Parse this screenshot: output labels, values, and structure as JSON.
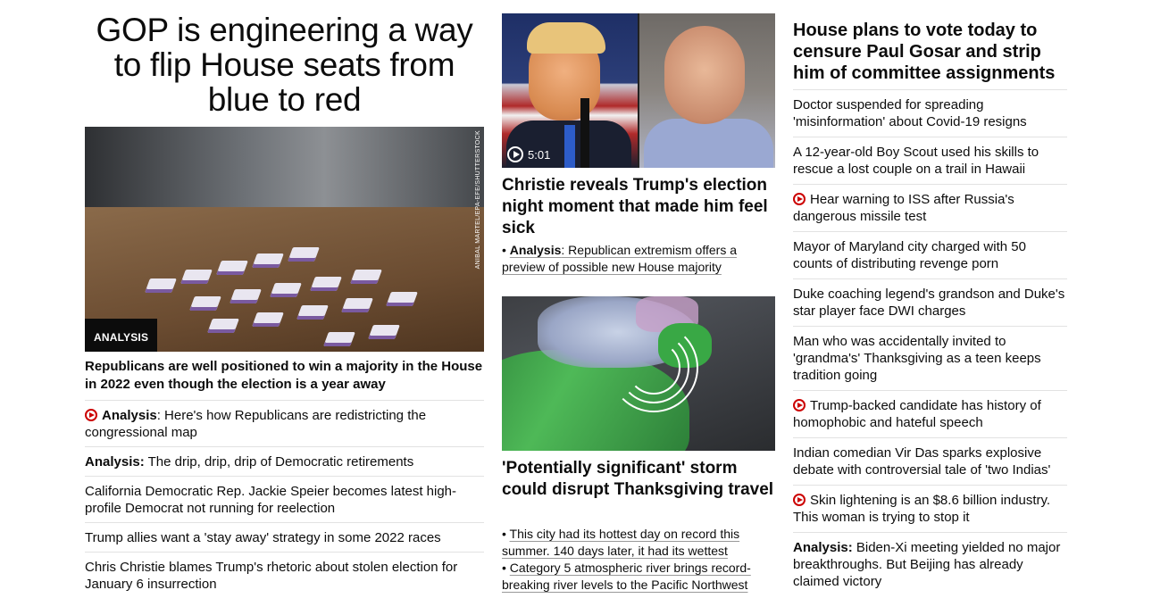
{
  "col1": {
    "headline": "GOP is engineering a way to flip House seats from blue to red",
    "image_credit": "ANIBAL MARTEL/EPA-EFE/SHUTTERSTOCK",
    "badge": "ANALYSIS",
    "caption": "Republicans are well positioned to win a majority in the House in 2022 even though the election is a year away",
    "items": [
      {
        "prefix": "Analysis",
        "text": ": Here's how Republicans are redistricting the congressional map",
        "video": true
      },
      {
        "prefix": "Analysis:",
        "text": " The drip, drip, drip of Democratic retirements",
        "video": false
      },
      {
        "prefix": "",
        "text": "California Democratic Rep. Jackie Speier becomes latest high-profile Democrat not running for reelection",
        "video": false
      },
      {
        "prefix": "",
        "text": "Trump allies want a 'stay away' strategy in some 2022 races",
        "video": false
      },
      {
        "prefix": "",
        "text": "Chris Christie blames Trump's rhetoric about stolen election for January 6 insurrection",
        "video": false
      }
    ]
  },
  "col2": {
    "video_duration": "5:01",
    "headline1": "Christie reveals Trump's election night moment that made him feel sick",
    "sub1_bullet": "•",
    "sub1_prefix": "Analysis",
    "sub1_text": ": Republican extremism offers a preview of possible new House majority",
    "headline2": "'Potentially significant' storm could disrupt Thanksgiving travel",
    "bullet2a": "This city had its hottest day on record this summer. 140 days later, it had its wettest",
    "bullet2b": "Category 5 atmospheric river brings record-breaking river levels to the Pacific Northwest"
  },
  "col3": {
    "headline": "House plans to vote today to censure Paul Gosar and strip him of committee assignments",
    "items": [
      {
        "prefix": "",
        "text": "Doctor suspended for spreading 'misinformation' about Covid-19 resigns",
        "video": false
      },
      {
        "prefix": "",
        "text": "A 12-year-old Boy Scout used his skills to rescue a lost couple on a trail in Hawaii",
        "video": false
      },
      {
        "prefix": "",
        "text": "Hear warning to ISS after Russia's dangerous missile test",
        "video": true
      },
      {
        "prefix": "",
        "text": "Mayor of Maryland city charged with 50 counts of distributing revenge porn",
        "video": false
      },
      {
        "prefix": "",
        "text": "Duke coaching legend's grandson and Duke's star player face DWI charges",
        "video": false
      },
      {
        "prefix": "",
        "text": "Man who was accidentally invited to 'grandma's' Thanksgiving as a teen keeps tradition going",
        "video": false
      },
      {
        "prefix": "",
        "text": "Trump-backed candidate has history of homophobic and hateful speech",
        "video": true
      },
      {
        "prefix": "",
        "text": "Indian comedian Vir Das sparks explosive debate with controversial tale of 'two Indias'",
        "video": false
      },
      {
        "prefix": "",
        "text": "Skin lightening is an $8.6 billion industry. This woman is trying to stop it",
        "video": true
      },
      {
        "prefix": "Analysis:",
        "text": " Biden-Xi meeting yielded no major breakthroughs. But Beijing has already claimed victory",
        "video": false
      }
    ]
  },
  "colors": {
    "text": "#0c0c0c",
    "divider": "#e2e2e2",
    "video_red": "#cc0000",
    "badge_bg": "#0c0c0c"
  }
}
